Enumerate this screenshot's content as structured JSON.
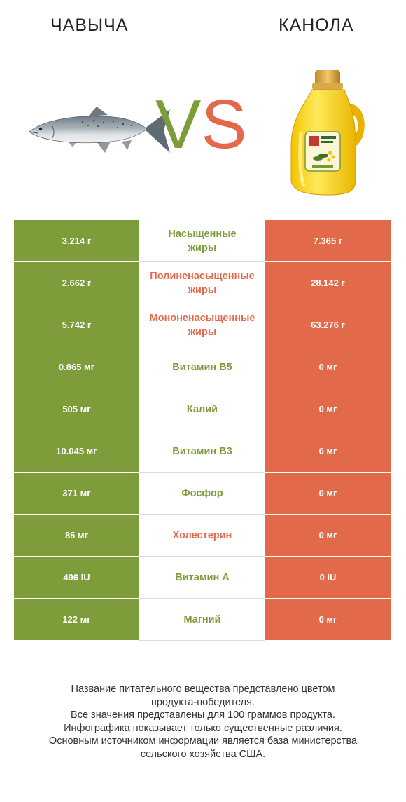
{
  "header": {
    "left_title": "ЧАВЫЧА",
    "right_title": "КАНОЛА",
    "vs_v": "V",
    "vs_s": "S"
  },
  "colors": {
    "winner_left": "#7c9d3a",
    "winner_right": "#e2694a"
  },
  "rows": [
    {
      "left": "3.214 г",
      "label": "Насыщенные\nжиры",
      "right": "7.365 г",
      "winner": "green"
    },
    {
      "left": "2.662 г",
      "label": "Полиненасыщенные\nжиры",
      "right": "28.142 г",
      "winner": "red"
    },
    {
      "left": "5.742 г",
      "label": "Мононенасыщенные\nжиры",
      "right": "63.276 г",
      "winner": "red"
    },
    {
      "left": "0.865 мг",
      "label": "Витамин B5",
      "right": "0 мг",
      "winner": "green"
    },
    {
      "left": "505 мг",
      "label": "Калий",
      "right": "0 мг",
      "winner": "green"
    },
    {
      "left": "10.045 мг",
      "label": "Витамин B3",
      "right": "0 мг",
      "winner": "green"
    },
    {
      "left": "371 мг",
      "label": "Фосфор",
      "right": "0 мг",
      "winner": "green"
    },
    {
      "left": "85 мг",
      "label": "Холестерин",
      "right": "0 мг",
      "winner": "red"
    },
    {
      "left": "496 IU",
      "label": "Витамин A",
      "right": "0 IU",
      "winner": "green"
    },
    {
      "left": "122 мг",
      "label": "Магний",
      "right": "0 мг",
      "winner": "green"
    }
  ],
  "footer": {
    "lines": [
      "Название питательного вещества представлено цветом",
      "продукта-победителя.",
      "Все значения представлены для 100 граммов продукта.",
      "Инфографика показывает только существенные различия.",
      "Основным источником информации является база министерства",
      "сельского хозяйства США."
    ]
  },
  "images": {
    "left": "salmon-fish-icon",
    "right": "canola-oil-bottle-icon"
  }
}
